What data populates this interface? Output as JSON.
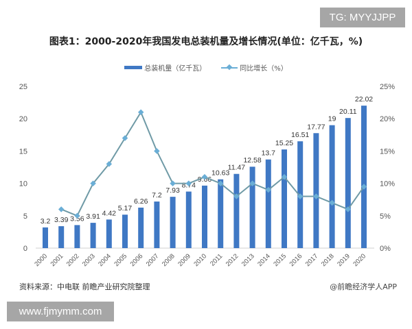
{
  "watermarks": {
    "top_right": "TG: MYYJJPP",
    "bottom_left": "www.fjmymm.com"
  },
  "footer": {
    "source": "资料来源：中电联 前瞻产业研究院整理",
    "credit": "@前瞻经济学人APP"
  },
  "chart_data": {
    "type": "bar+line",
    "title": "图表1：2000-2020年我国发电总装机量及增长情况(单位：亿千瓦，%)",
    "categories": [
      "2000",
      "2001",
      "2002",
      "2003",
      "2004",
      "2005",
      "2006",
      "2007",
      "2008",
      "2009",
      "2010",
      "2011",
      "2012",
      "2013",
      "2014",
      "2015",
      "2016",
      "2017",
      "2018",
      "2019",
      "2020"
    ],
    "series": [
      {
        "name": "总装机量（亿千瓦）",
        "type": "bar",
        "axis": "left",
        "color": "#3f78c4",
        "values": [
          3.2,
          3.39,
          3.56,
          3.91,
          4.42,
          5.17,
          6.26,
          7.2,
          7.93,
          8.74,
          9.66,
          10.63,
          11.47,
          12.58,
          13.7,
          15.25,
          16.51,
          17.77,
          19,
          20.11,
          22.02
        ],
        "labels": [
          "3.2",
          "3.39",
          "3.56",
          "3.91",
          "4.42",
          "5.17",
          "6.26",
          "7.2",
          "7.93",
          "8.74",
          "9.66",
          "10.63",
          "11.47",
          "12.58",
          "13.7",
          "15.25",
          "16.51",
          "17.77",
          "19",
          "20.11",
          "22.02"
        ]
      },
      {
        "name": "同比增长（%）",
        "type": "line",
        "axis": "right",
        "color": "#6aaed6",
        "values": [
          null,
          6,
          5,
          10,
          13,
          17,
          21,
          15,
          10,
          10,
          11,
          10,
          8,
          10,
          9,
          11,
          8,
          8,
          7,
          6,
          9.5
        ]
      }
    ],
    "left_axis": {
      "range": [
        0,
        25
      ],
      "ticks": [
        "0",
        "5",
        "10",
        "15",
        "20",
        "25"
      ]
    },
    "right_axis": {
      "range": [
        0,
        25
      ],
      "ticks": [
        "0%",
        "5%",
        "10%",
        "15%",
        "20%",
        "25%"
      ]
    },
    "grid": false,
    "legend_position": "top"
  }
}
